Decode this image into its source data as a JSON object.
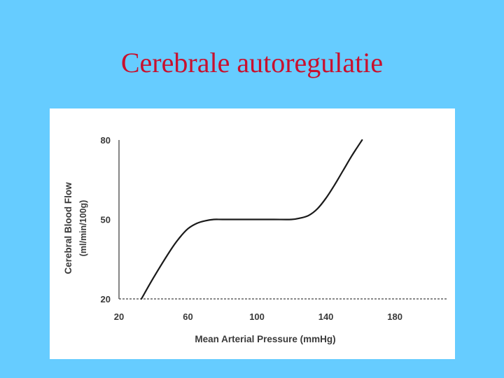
{
  "slide": {
    "title": "Cerebrale autoregulatie",
    "background_color": "#66ccff",
    "title_color": "#c8102e"
  },
  "chart_data": {
    "type": "line",
    "title": "",
    "xlabel": "Mean Arterial Pressure (mmHg)",
    "ylabel": "Cerebral Blood Flow",
    "ylabel_unit": "(ml/min/100g)",
    "xlim": [
      20,
      210
    ],
    "ylim": [
      20,
      80
    ],
    "xticks": [
      20,
      60,
      100,
      140,
      180
    ],
    "yticks": [
      20,
      50,
      80
    ],
    "grid": false,
    "line_color": "#1a1a1a",
    "series": [
      {
        "x": [
          33,
          40,
          50,
          55,
          60,
          65,
          70,
          75,
          80,
          90,
          100,
          110,
          120,
          125,
          130,
          135,
          140,
          145,
          150,
          155,
          161
        ],
        "values": [
          20,
          28,
          38.5,
          43,
          46.5,
          48.5,
          49.5,
          50,
          50,
          50,
          50,
          50,
          50,
          50.5,
          51.5,
          54,
          58,
          63,
          68.5,
          74,
          80
        ]
      }
    ]
  }
}
